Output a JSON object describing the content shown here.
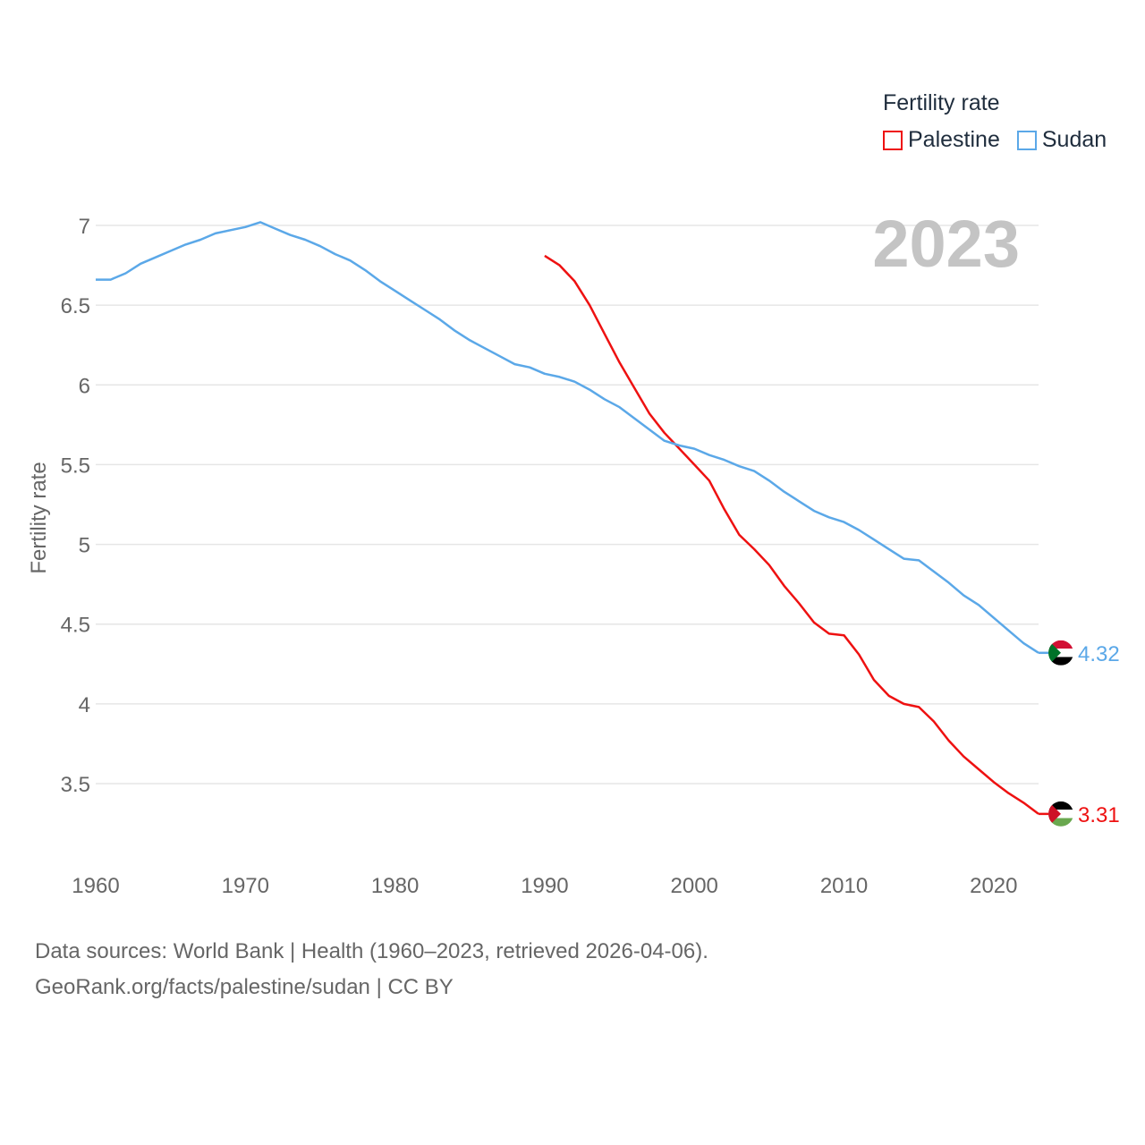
{
  "chart_data": {
    "type": "line",
    "title": "",
    "xlabel": "",
    "ylabel": "Fertility rate",
    "xlim": [
      1960,
      2023
    ],
    "ylim": [
      3.1,
      7.15
    ],
    "x_ticks": [
      1960,
      1970,
      1980,
      1990,
      2000,
      2010,
      2020
    ],
    "y_ticks": [
      3.5,
      4,
      4.5,
      5,
      5.5,
      6,
      6.5,
      7
    ],
    "grid": true,
    "year_overlay": "2023",
    "legend": {
      "title": "Fertility rate",
      "position": "top-right"
    },
    "series": [
      {
        "name": "Palestine",
        "color": "#ee1111",
        "end_label": "3.31",
        "x": [
          1990,
          1991,
          1992,
          1993,
          1994,
          1995,
          1996,
          1997,
          1998,
          1999,
          2000,
          2001,
          2002,
          2003,
          2004,
          2005,
          2006,
          2007,
          2008,
          2009,
          2010,
          2011,
          2012,
          2013,
          2014,
          2015,
          2016,
          2017,
          2018,
          2019,
          2020,
          2021,
          2022,
          2023
        ],
        "values": [
          6.81,
          6.75,
          6.65,
          6.5,
          6.32,
          6.14,
          5.98,
          5.82,
          5.7,
          5.6,
          5.5,
          5.4,
          5.22,
          5.06,
          4.97,
          4.87,
          4.74,
          4.63,
          4.51,
          4.44,
          4.43,
          4.31,
          4.15,
          4.05,
          4.0,
          3.98,
          3.89,
          3.77,
          3.67,
          3.59,
          3.51,
          3.44,
          3.38,
          3.31
        ]
      },
      {
        "name": "Sudan",
        "color": "#5ba8e8",
        "end_label": "4.32",
        "x": [
          1960,
          1961,
          1962,
          1963,
          1964,
          1965,
          1966,
          1967,
          1968,
          1969,
          1970,
          1971,
          1972,
          1973,
          1974,
          1975,
          1976,
          1977,
          1978,
          1979,
          1980,
          1981,
          1982,
          1983,
          1984,
          1985,
          1986,
          1987,
          1988,
          1989,
          1990,
          1991,
          1992,
          1993,
          1994,
          1995,
          1996,
          1997,
          1998,
          1999,
          2000,
          2001,
          2002,
          2003,
          2004,
          2005,
          2006,
          2007,
          2008,
          2009,
          2010,
          2011,
          2012,
          2013,
          2014,
          2015,
          2016,
          2017,
          2018,
          2019,
          2020,
          2021,
          2022,
          2023
        ],
        "values": [
          6.66,
          6.66,
          6.7,
          6.76,
          6.8,
          6.84,
          6.88,
          6.91,
          6.95,
          6.97,
          6.99,
          7.02,
          6.98,
          6.94,
          6.91,
          6.87,
          6.82,
          6.78,
          6.72,
          6.65,
          6.59,
          6.53,
          6.47,
          6.41,
          6.34,
          6.28,
          6.23,
          6.18,
          6.13,
          6.11,
          6.07,
          6.05,
          6.02,
          5.97,
          5.91,
          5.86,
          5.79,
          5.72,
          5.65,
          5.62,
          5.6,
          5.56,
          5.53,
          5.49,
          5.46,
          5.4,
          5.33,
          5.27,
          5.21,
          5.17,
          5.14,
          5.09,
          5.03,
          4.97,
          4.91,
          4.9,
          4.83,
          4.76,
          4.68,
          4.62,
          4.54,
          4.46,
          4.38,
          4.32
        ]
      }
    ]
  },
  "footer": {
    "line1": "Data sources: World Bank | Health (1960–2023, retrieved 2026-04-06).",
    "line2": "GeoRank.org/facts/palestine/sudan | CC BY"
  },
  "flags": [
    {
      "series": "Sudan",
      "icon": "sudan-flag-icon",
      "colors": [
        "#d21034",
        "#ffffff",
        "#000000",
        "#007229"
      ]
    },
    {
      "series": "Palestine",
      "icon": "palestine-flag-icon",
      "colors": [
        "#000000",
        "#ffffff",
        "#6aa84f",
        "#ce1126"
      ]
    }
  ]
}
